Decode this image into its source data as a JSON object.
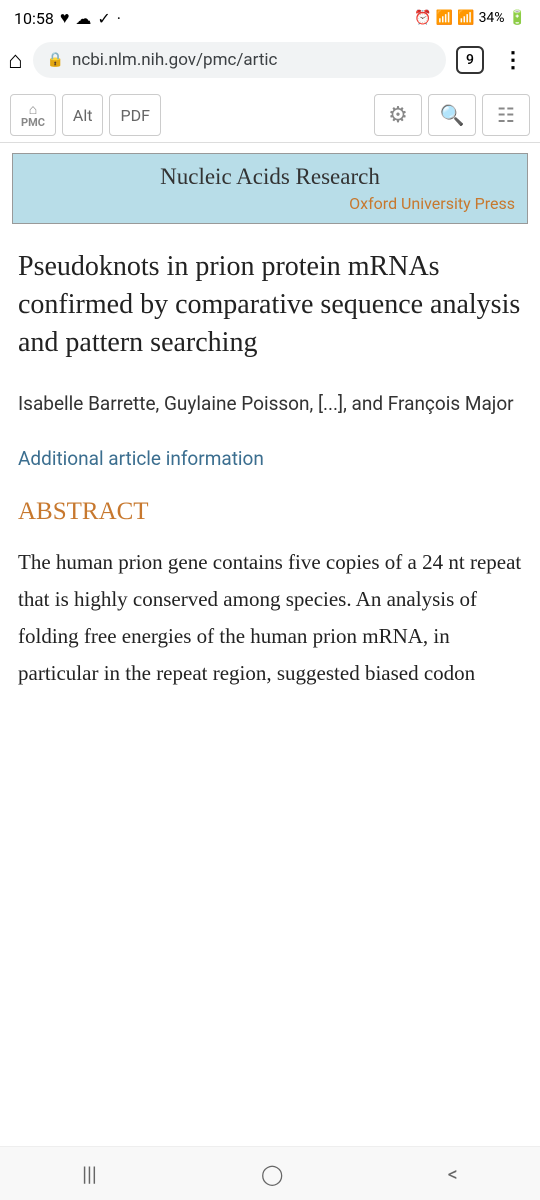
{
  "status": {
    "time": "10:58",
    "battery": "34%"
  },
  "browser": {
    "url": "ncbi.nlm.nih.gov/pmc/artic",
    "tab_count": "9"
  },
  "toolbar": {
    "pmc_label": "PMC",
    "alt_label": "Alt",
    "pdf_label": "PDF"
  },
  "journal": {
    "name": "Nucleic Acids Research",
    "publisher": "Oxford University Press"
  },
  "article": {
    "title": "Pseudoknots in prion protein mRNAs confirmed by comparative sequence analysis and pattern searching",
    "authors": "Isabelle Barrette, Guylaine Poisson, [...], and François Major",
    "additional_info": "Additional article information",
    "abstract_heading": "ABSTRACT",
    "abstract_text": "The human prion gene contains five copies of a 24 nt repeat that is highly conserved among species. An analysis of folding free energies of the human prion mRNA, in particular in the repeat region, suggested biased codon"
  },
  "colors": {
    "banner_bg": "#b8dde8",
    "accent": "#c7782e",
    "link": "#3b6e8f"
  }
}
